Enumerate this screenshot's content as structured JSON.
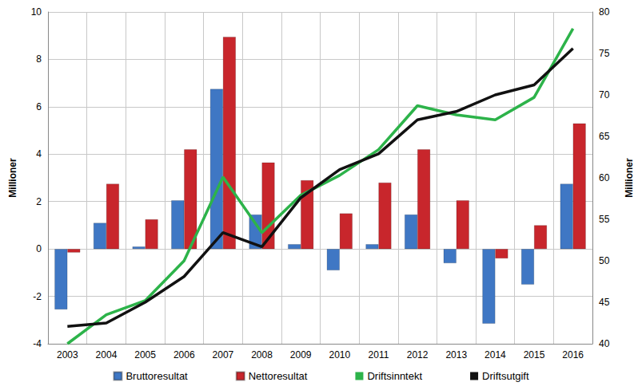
{
  "chart_data": {
    "type": "bar",
    "y_label": "Millioner",
    "y2_label": "Millioner",
    "categories": [
      "2003",
      "2004",
      "2005",
      "2006",
      "2007",
      "2008",
      "2009",
      "2010",
      "2011",
      "2012",
      "2013",
      "2014",
      "2015",
      "2016"
    ],
    "series": [
      {
        "name": "Bruttoresultat",
        "type": "bar",
        "color": "#3f77c4",
        "values": [
          -2.55,
          1.1,
          0.1,
          2.05,
          6.75,
          1.45,
          0.2,
          -0.9,
          0.2,
          1.45,
          -0.6,
          -3.15,
          -1.5,
          2.75
        ]
      },
      {
        "name": "Nettoresultat",
        "type": "bar",
        "color": "#c8262c",
        "values": [
          -0.15,
          2.75,
          1.25,
          4.2,
          8.95,
          3.65,
          2.9,
          1.5,
          2.8,
          4.2,
          2.05,
          -0.4,
          1.0,
          5.3
        ]
      },
      {
        "name": "Driftsinntekt",
        "type": "line",
        "axis": "y2",
        "color": "#2db34a",
        "values": [
          40,
          43.5,
          45.2,
          50,
          60.1,
          53.4,
          57.9,
          60.3,
          63.4,
          68.7,
          67.6,
          67,
          69.7,
          78
        ]
      },
      {
        "name": "Driftsutgift",
        "type": "line",
        "axis": "y2",
        "color": "#111111",
        "values": [
          42.1,
          42.5,
          45,
          48.1,
          53.4,
          51.7,
          57.6,
          61,
          62.9,
          67,
          68,
          70,
          71.2,
          75.6
        ]
      }
    ],
    "ylim": [
      -4,
      10
    ],
    "yticks": [
      -4,
      -2,
      0,
      2,
      4,
      6,
      8,
      10
    ],
    "y2lim": [
      40,
      80
    ],
    "y2ticks": [
      40,
      45,
      50,
      55,
      60,
      65,
      70,
      75,
      80
    ],
    "grid": true,
    "legend": "bottom"
  }
}
